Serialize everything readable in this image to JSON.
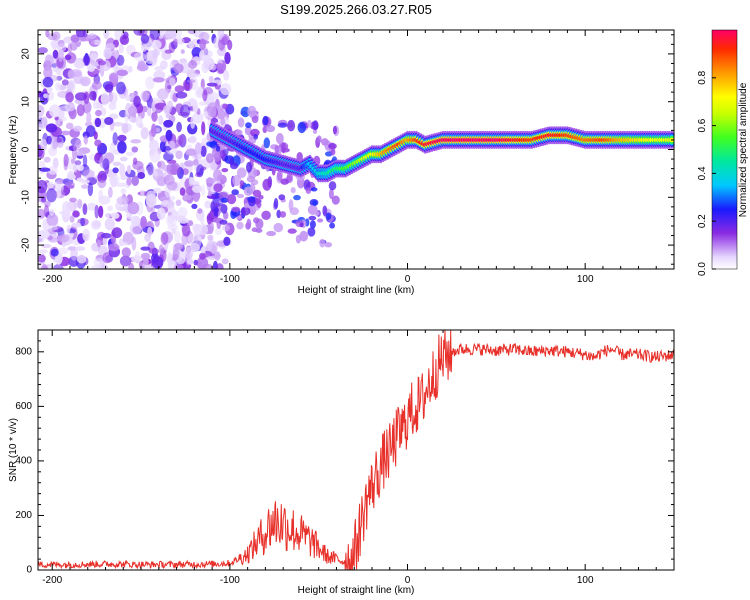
{
  "title": "S199.2025.266.03.27.R05",
  "chart_data": [
    {
      "type": "heatmap",
      "name": "spectrogram",
      "title": "S199.2025.266.03.27.R05",
      "xlabel": "Height of straight line (km)",
      "ylabel": "Frequency (Hz)",
      "xlim": [
        -208,
        150
      ],
      "ylim": [
        -25,
        25
      ],
      "xticks": [
        -200,
        -100,
        0,
        100
      ],
      "yticks": [
        -20,
        -10,
        0,
        10,
        20
      ],
      "colorbar": {
        "label": "Normalized spectral amplitude",
        "range": [
          0,
          1
        ],
        "ticks": [
          0.0,
          0.2,
          0.4,
          0.6,
          0.8
        ]
      },
      "signal_ridge": {
        "x": [
          -110,
          -100,
          -90,
          -80,
          -70,
          -60,
          -55,
          -50,
          -45,
          -40,
          -35,
          -30,
          -25,
          -20,
          -15,
          -10,
          -5,
          0,
          5,
          10,
          20,
          30,
          40,
          50,
          60,
          70,
          80,
          90,
          100,
          110,
          120,
          130,
          140,
          150
        ],
        "frequency": [
          4,
          2,
          0,
          -2,
          -3,
          -4,
          -3,
          -5,
          -5,
          -4,
          -4,
          -3,
          -2,
          -1,
          -1,
          0,
          1,
          2,
          2,
          1,
          2,
          2,
          2,
          2,
          2,
          2,
          3,
          3,
          2,
          2,
          2,
          2,
          2,
          2
        ],
        "amplitude": [
          0.2,
          0.2,
          0.25,
          0.25,
          0.2,
          0.2,
          0.35,
          0.4,
          0.45,
          0.5,
          0.55,
          0.6,
          0.65,
          0.7,
          0.8,
          0.85,
          0.9,
          0.8,
          0.9,
          0.95,
          1.0,
          1.0,
          1.0,
          1.0,
          0.95,
          0.9,
          0.95,
          0.9,
          0.85,
          0.9,
          0.8,
          0.75,
          0.7,
          0.7
        ]
      }
    },
    {
      "type": "line",
      "name": "snr",
      "xlabel": "Height of straight line (km)",
      "ylabel": "SNR (10 * v/v)",
      "xlim": [
        -208,
        150
      ],
      "ylim": [
        0,
        880
      ],
      "xticks": [
        -200,
        -100,
        0,
        100
      ],
      "yticks": [
        0,
        200,
        400,
        600,
        800
      ],
      "color": "#e8302a",
      "series": [
        {
          "name": "SNR",
          "x": [
            -208,
            -190,
            -170,
            -150,
            -130,
            -110,
            -100,
            -95,
            -90,
            -85,
            -80,
            -75,
            -70,
            -65,
            -60,
            -55,
            -50,
            -45,
            -40,
            -35,
            -32,
            -30,
            -28,
            -25,
            -22,
            -20,
            -18,
            -15,
            -12,
            -10,
            -8,
            -5,
            -2,
            0,
            2,
            5,
            8,
            10,
            12,
            15,
            18,
            20,
            25,
            30,
            40,
            50,
            60,
            70,
            80,
            90,
            100,
            105,
            110,
            115,
            120,
            130,
            140,
            150
          ],
          "y": [
            20,
            20,
            22,
            20,
            20,
            22,
            25,
            40,
            60,
            100,
            140,
            180,
            170,
            150,
            130,
            110,
            80,
            50,
            40,
            30,
            30,
            60,
            120,
            200,
            280,
            300,
            340,
            380,
            420,
            430,
            460,
            500,
            520,
            560,
            580,
            600,
            620,
            650,
            680,
            720,
            760,
            780,
            800,
            810,
            810,
            805,
            810,
            800,
            805,
            800,
            790,
            780,
            800,
            810,
            790,
            790,
            780,
            790
          ]
        }
      ]
    }
  ]
}
